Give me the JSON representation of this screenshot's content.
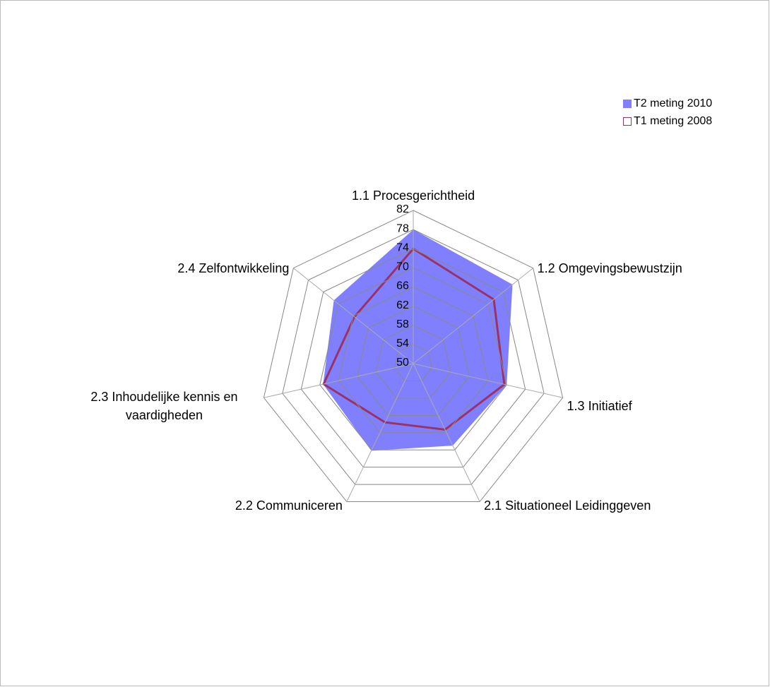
{
  "chart_data": {
    "type": "radar",
    "categories": [
      "1.1 Procesgerichtheid",
      "1.2 Omgevingsbewustzijn",
      "1.3 Initiatief",
      "2.1 Situationeel Leidinggeven",
      "2.2 Communiceren",
      "2.3 Inhoudelijke kennis en vaardigheden",
      "2.4 Zelfontwikkeling"
    ],
    "series": [
      {
        "name": "T2 meting 2010",
        "color": "#8080ff",
        "values": [
          78,
          76.5,
          70,
          69,
          70.2,
          69.3,
          71.2
        ]
      },
      {
        "name": "T1 meting 2008",
        "color": "#993366",
        "values": [
          74,
          71.5,
          69.5,
          65.3,
          63.6,
          69.2,
          65.7
        ]
      }
    ],
    "ylim": [
      50,
      82
    ],
    "yticks": [
      50,
      54,
      58,
      62,
      66,
      70,
      74,
      78,
      82
    ],
    "grid": true,
    "legend": "top-right"
  }
}
